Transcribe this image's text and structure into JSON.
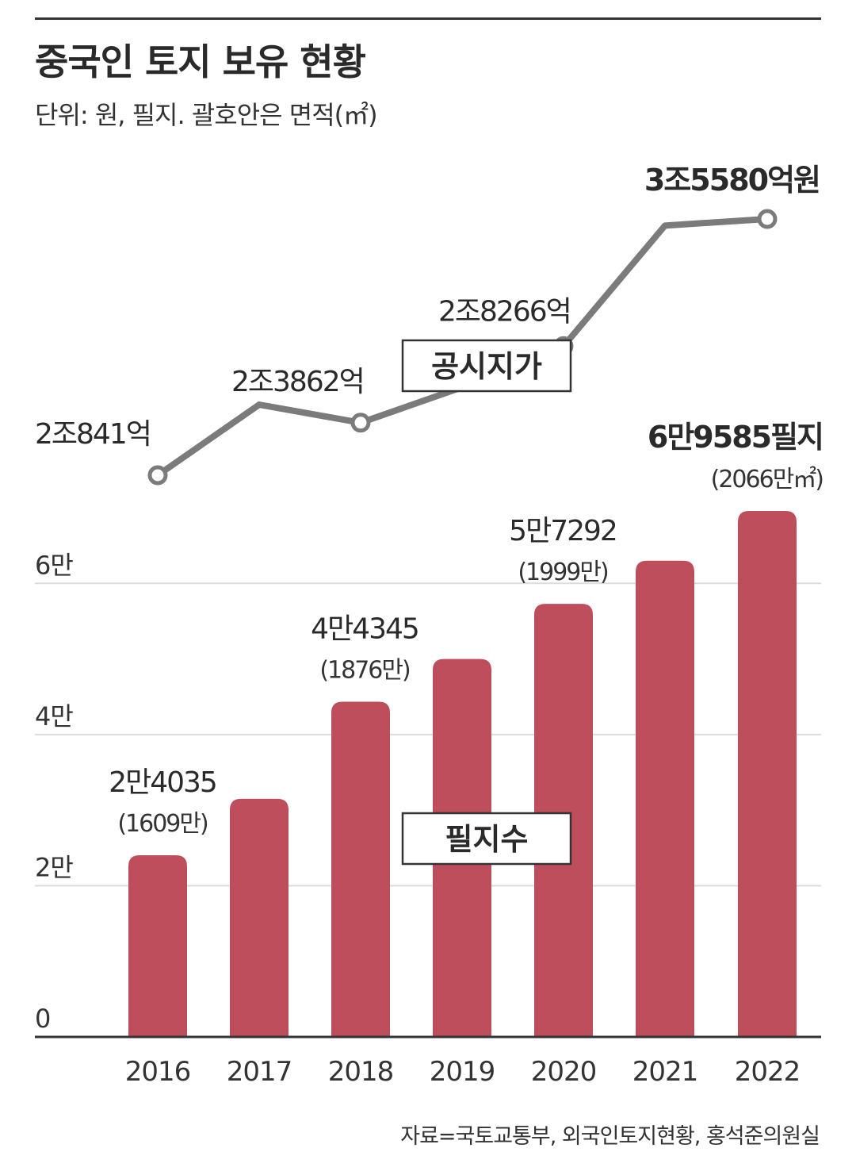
{
  "title": "중국인 토지 보유 현황",
  "subtitle": "단위: 원, 필지. 괄호안은 면적(㎡)",
  "source": "자료=국토교통부, 외국인토지현황, 홍석준의원실",
  "colors": {
    "bar": "#be4e5c",
    "line": "#7b7b7b",
    "grid": "#dcdcdc",
    "axis": "#333333"
  },
  "chart_data": [
    {
      "type": "line",
      "name_box": "공시지가",
      "x": [
        "2016",
        "2017",
        "2018",
        "2019",
        "2020",
        "2021",
        "2022"
      ],
      "values_eok": [
        20841,
        24900,
        23862,
        25900,
        28266,
        35200,
        35580
      ],
      "value_labels": [
        "2조841억",
        "",
        "2조3862억",
        "",
        "2조8266억",
        "",
        "3조5580억원"
      ]
    },
    {
      "type": "bar",
      "name_box": "필지수",
      "categories": [
        "2016",
        "2017",
        "2018",
        "2019",
        "2020",
        "2021",
        "2022"
      ],
      "values": [
        24035,
        31500,
        44345,
        50000,
        57292,
        63000,
        69585
      ],
      "value_labels": [
        "2만4035",
        "",
        "4만4345",
        "",
        "5만7292",
        "",
        "6만9585필지"
      ],
      "area_labels": [
        "(1609만)",
        "",
        "(1876만)",
        "",
        "(1999만)",
        "",
        "(2066만㎡)"
      ],
      "ylim": [
        0,
        70000
      ],
      "yticks": [
        0,
        20000,
        40000,
        60000
      ],
      "ytick_labels": [
        "0",
        "2만",
        "4만",
        "6만"
      ]
    }
  ]
}
